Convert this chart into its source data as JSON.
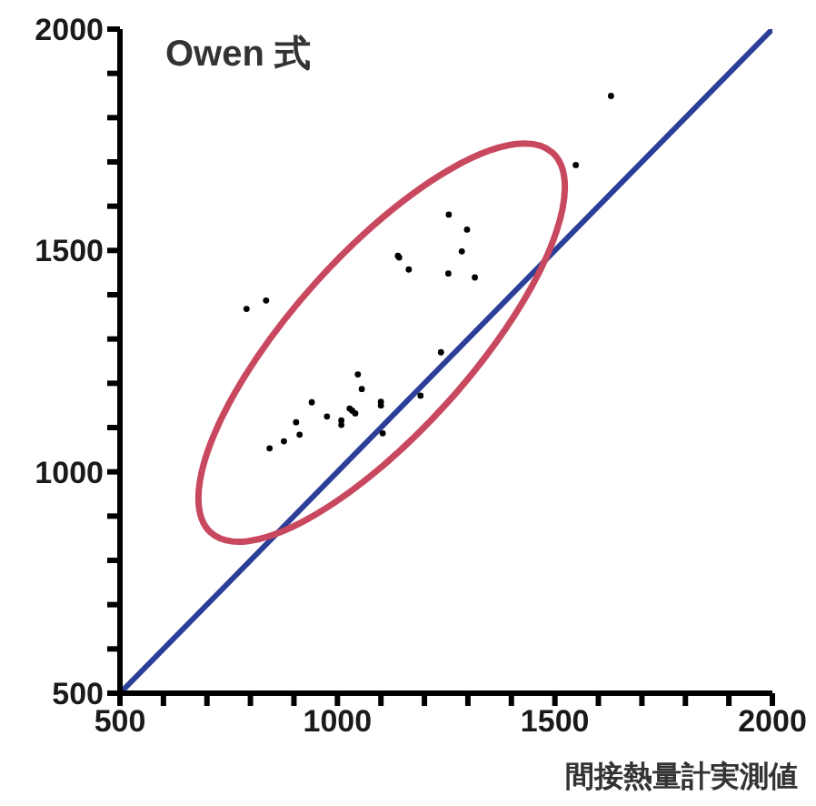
{
  "chart_data": {
    "type": "scatter",
    "title": "Owen 式",
    "xlabel": "間接熱量計実測値",
    "xlim": [
      500,
      2000
    ],
    "ylim": [
      500,
      2000
    ],
    "xticks": [
      500,
      {
        "value": 600,
        "label": null
      },
      {
        "value": 700,
        "label": null
      },
      {
        "value": 800,
        "label": null
      },
      {
        "value": 900,
        "label": null
      },
      1000,
      {
        "value": 1100,
        "label": null
      },
      {
        "value": 1200,
        "label": null
      },
      {
        "value": 1300,
        "label": null
      },
      {
        "value": 1400,
        "label": null
      },
      1500,
      {
        "value": 1600,
        "label": null
      },
      {
        "value": 1700,
        "label": null
      },
      {
        "value": 1800,
        "label": null
      },
      {
        "value": 1900,
        "label": null
      },
      2000
    ],
    "yticks": [
      500,
      {
        "value": 600,
        "label": null
      },
      {
        "value": 700,
        "label": null
      },
      {
        "value": 800,
        "label": null
      },
      {
        "value": 900,
        "label": null
      },
      1000,
      {
        "value": 1100,
        "label": null
      },
      {
        "value": 1200,
        "label": null
      },
      {
        "value": 1300,
        "label": null
      },
      {
        "value": 1400,
        "label": null
      },
      1500,
      {
        "value": 1600,
        "label": null
      },
      {
        "value": 1700,
        "label": null
      },
      {
        "value": 1800,
        "label": null
      },
      {
        "value": 1900,
        "label": null
      },
      2000
    ],
    "series": [
      {
        "color": "#000000",
        "marker": "circle",
        "x": [
          1629,
          1548,
          1256,
          1298,
          1286,
          1139,
          1142,
          1164,
          1255,
          1316,
          791,
          836,
          1238,
          1047,
          1056,
          941,
          1100,
          1100,
          1191,
          1028,
          1034,
          1041,
          976,
          1009,
          1009,
          905,
          913,
          877,
          844,
          1104
        ],
        "values": [
          1849,
          1693,
          1581,
          1547,
          1498,
          1488,
          1484,
          1457,
          1448,
          1439,
          1368,
          1387,
          1270,
          1220,
          1187,
          1157,
          1158,
          1150,
          1172,
          1143,
          1138,
          1132,
          1125,
          1116,
          1106,
          1112,
          1084,
          1069,
          1053,
          1087
        ]
      },
      {
        "type": "line",
        "color": "#2b3e98",
        "x": [
          500,
          2000
        ],
        "values": [
          500,
          2000
        ]
      }
    ]
  }
}
